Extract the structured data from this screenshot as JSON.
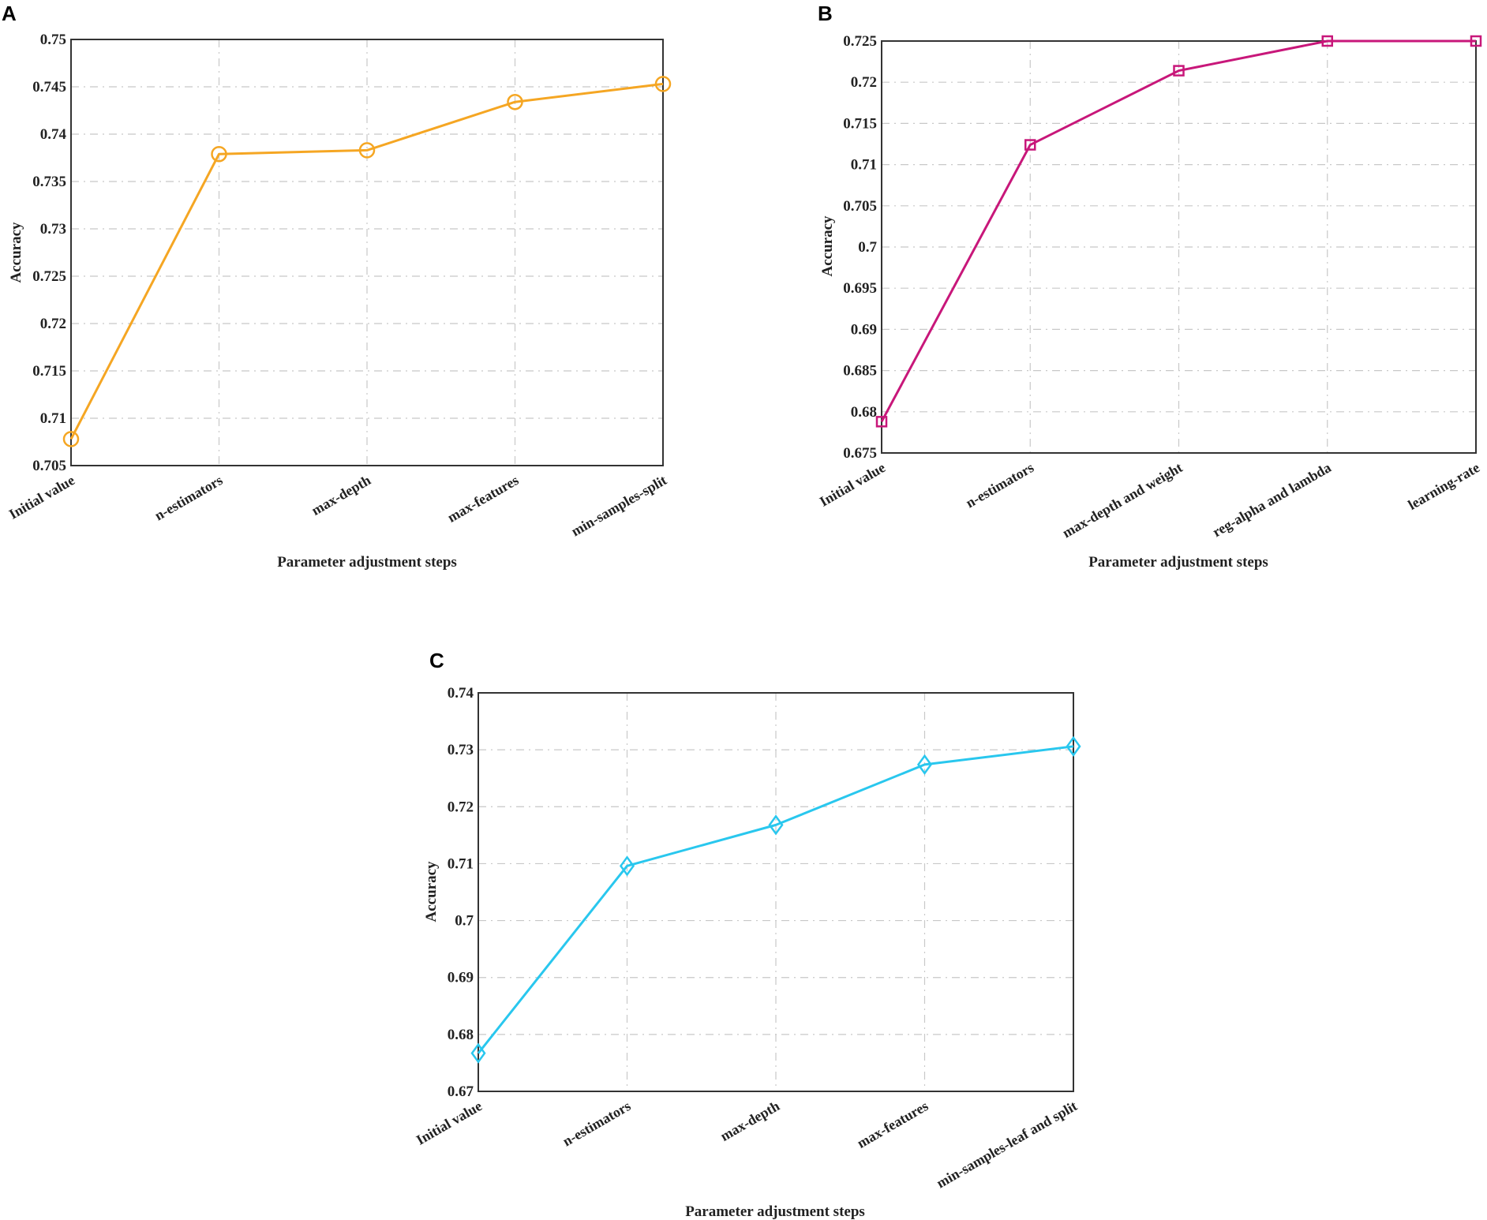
{
  "colors": {
    "A": "#f5a623",
    "B": "#c8177a",
    "C": "#29c7ee"
  },
  "chart_data": [
    {
      "panel": "A",
      "type": "line",
      "marker": "circle",
      "categories": [
        "Initial value",
        "n-estimators",
        "max-depth",
        "max-features",
        "min-samples-split"
      ],
      "values": [
        0.7078,
        0.7379,
        0.7383,
        0.7434,
        0.7453
      ],
      "xlabel": "Parameter adjustment steps",
      "ylabel": "Accuracy",
      "ylim": [
        0.705,
        0.75
      ],
      "yticks": [
        "0.705",
        "0.71",
        "0.715",
        "0.72",
        "0.725",
        "0.73",
        "0.735",
        "0.74",
        "0.745",
        "0.75"
      ],
      "grid": true
    },
    {
      "panel": "B",
      "type": "line",
      "marker": "square",
      "categories": [
        "Initial value",
        "n-estimators",
        "max-depth and weight",
        "reg-alpha and lambda",
        "learning-rate"
      ],
      "values": [
        0.6788,
        0.7124,
        0.7214,
        0.725,
        0.725
      ],
      "xlabel": "Parameter adjustment steps",
      "ylabel": "Accuracy",
      "ylim": [
        0.675,
        0.725
      ],
      "yticks": [
        "0.675",
        "0.68",
        "0.685",
        "0.69",
        "0.695",
        "0.7",
        "0.705",
        "0.71",
        "0.715",
        "0.72",
        "0.725"
      ],
      "grid": true
    },
    {
      "panel": "C",
      "type": "line",
      "marker": "diamond",
      "categories": [
        "Initial value",
        "n-estimators",
        "max-depth",
        "max-features",
        "min-samples-leaf and split"
      ],
      "values": [
        0.6767,
        0.7096,
        0.7168,
        0.7274,
        0.7306
      ],
      "xlabel": "Parameter adjustment steps",
      "ylabel": "Accuracy",
      "ylim": [
        0.67,
        0.74
      ],
      "yticks": [
        "0.67",
        "0.68",
        "0.69",
        "0.7",
        "0.71",
        "0.72",
        "0.73",
        "0.74"
      ],
      "grid": true
    }
  ]
}
